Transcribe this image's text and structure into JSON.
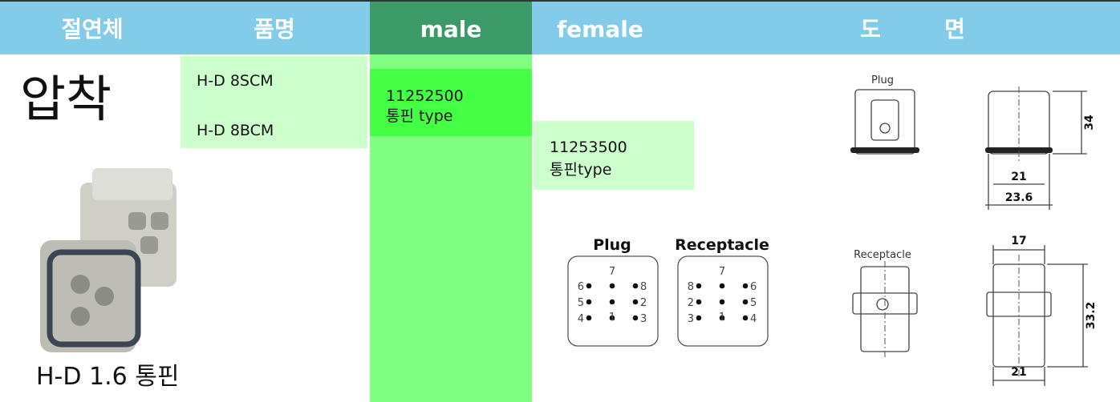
{
  "header": {
    "columns": [
      "절연체",
      "품명",
      "male",
      "female"
    ],
    "drawing": [
      "도",
      "면"
    ]
  },
  "insulator": {
    "type": "압착",
    "caption": "H-D 1.6 통핀"
  },
  "product_names": [
    "H-D 8SCM",
    "H-D 8BCM"
  ],
  "male": {
    "part_number": "11252500",
    "description": "통핀 type"
  },
  "female": {
    "part_number": "11253500",
    "description": "통핀type"
  },
  "pin_layouts": [
    {
      "title": "Plug",
      "top": "7",
      "rows": [
        [
          "6",
          "8"
        ],
        [
          "5",
          "2"
        ],
        [
          "4",
          "3"
        ]
      ],
      "bottom": "1"
    },
    {
      "title": "Receptacle",
      "top": "7",
      "rows": [
        [
          "8",
          "6"
        ],
        [
          "2",
          "5"
        ],
        [
          "3",
          "4"
        ]
      ],
      "bottom": "1"
    }
  ],
  "drawings": {
    "plug": {
      "label": "Plug",
      "height": "34",
      "width_inner": "21",
      "width_outer": "23.6"
    },
    "receptacle": {
      "label": "Receptacle",
      "width_top": "17",
      "height": "33.2",
      "width_bottom": "21"
    }
  }
}
